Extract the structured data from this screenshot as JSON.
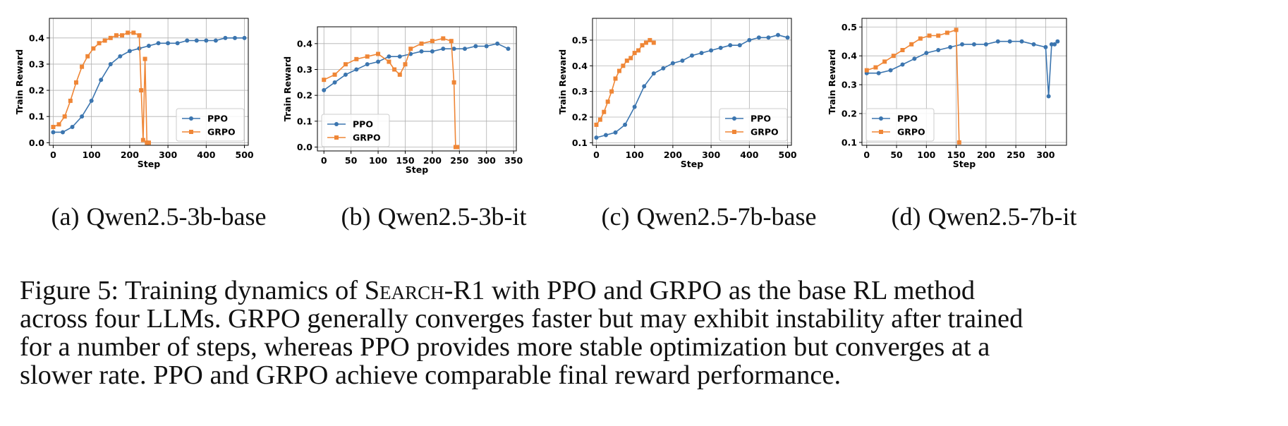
{
  "colors": {
    "ppo": "#3b75af",
    "grpo": "#ef8636",
    "grid": "#b0b0b0"
  },
  "figure": {
    "subplots": [
      {
        "tag": "(a)",
        "title": "Qwen2.5-3b-base"
      },
      {
        "tag": "(b)",
        "title": "Qwen2.5-3b-it"
      },
      {
        "tag": "(c)",
        "title": "Qwen2.5-7b-base"
      },
      {
        "tag": "(d)",
        "title": "Qwen2.5-7b-it"
      }
    ],
    "caption": {
      "lines": [
        [
          "Figure 5: Training dynamics of ",
          "Search",
          "-R1 with PPO and GRPO as the base RL method"
        ],
        [
          "across four LLMs. GRPO generally converges faster but may exhibit instability after trained"
        ],
        [
          "for a number of steps, whereas PPO provides more stable optimization but converges at a"
        ],
        [
          "slower rate. PPO and GRPO achieve comparable final reward performance."
        ]
      ]
    }
  },
  "chart_data": [
    {
      "type": "line",
      "xlabel": "Step",
      "ylabel": "Train Reward",
      "xlim": [
        -10,
        510
      ],
      "ylim": [
        -0.01,
        0.475
      ],
      "xticks": [
        0,
        100,
        200,
        300,
        400,
        500
      ],
      "yticks": [
        0.0,
        0.1,
        0.2,
        0.3,
        0.4
      ],
      "xticklabels": [
        "0",
        "100",
        "200",
        "300",
        "400",
        "500"
      ],
      "yticklabels": [
        "0.0",
        "0.1",
        "0.2",
        "0.3",
        "0.4"
      ],
      "grid": true,
      "legend": "lower-right",
      "series": [
        {
          "name": "PPO",
          "marker": "circle",
          "x": [
            0,
            25,
            50,
            75,
            100,
            125,
            150,
            175,
            200,
            225,
            250,
            275,
            300,
            325,
            350,
            375,
            400,
            425,
            450,
            475,
            500
          ],
          "y": [
            0.04,
            0.04,
            0.06,
            0.1,
            0.16,
            0.24,
            0.3,
            0.33,
            0.35,
            0.36,
            0.37,
            0.38,
            0.38,
            0.38,
            0.39,
            0.39,
            0.39,
            0.39,
            0.4,
            0.4,
            0.4
          ]
        },
        {
          "name": "GRPO",
          "marker": "square",
          "x": [
            0,
            15,
            30,
            45,
            60,
            75,
            90,
            105,
            120,
            135,
            150,
            165,
            180,
            195,
            210,
            225,
            230,
            235,
            240,
            245,
            250
          ],
          "y": [
            0.06,
            0.07,
            0.1,
            0.16,
            0.23,
            0.29,
            0.33,
            0.36,
            0.38,
            0.39,
            0.4,
            0.41,
            0.41,
            0.42,
            0.42,
            0.41,
            0.2,
            0.01,
            0.32,
            0.0,
            0.0
          ]
        }
      ]
    },
    {
      "type": "line",
      "xlabel": "Step",
      "ylabel": "Train Reward",
      "xlim": [
        -12,
        355
      ],
      "ylim": [
        -0.015,
        0.465
      ],
      "xticks": [
        0,
        50,
        100,
        150,
        200,
        250,
        300,
        350
      ],
      "yticks": [
        0.0,
        0.1,
        0.2,
        0.3,
        0.4
      ],
      "xticklabels": [
        "0",
        "50",
        "100",
        "150",
        "200",
        "250",
        "300",
        "350"
      ],
      "yticklabels": [
        "0.0",
        "0.1",
        "0.2",
        "0.3",
        "0.4"
      ],
      "grid": true,
      "legend": "lower-left",
      "series": [
        {
          "name": "PPO",
          "marker": "circle",
          "x": [
            0,
            20,
            40,
            60,
            80,
            100,
            120,
            140,
            160,
            180,
            200,
            220,
            240,
            260,
            280,
            300,
            320,
            340
          ],
          "y": [
            0.22,
            0.25,
            0.28,
            0.3,
            0.32,
            0.33,
            0.35,
            0.35,
            0.36,
            0.37,
            0.37,
            0.38,
            0.38,
            0.38,
            0.39,
            0.39,
            0.4,
            0.38
          ]
        },
        {
          "name": "GRPO",
          "marker": "square",
          "x": [
            0,
            20,
            40,
            60,
            80,
            100,
            120,
            130,
            140,
            150,
            160,
            180,
            200,
            220,
            235,
            240,
            243,
            246
          ],
          "y": [
            0.26,
            0.28,
            0.32,
            0.34,
            0.35,
            0.36,
            0.33,
            0.3,
            0.28,
            0.32,
            0.38,
            0.4,
            0.41,
            0.42,
            0.41,
            0.25,
            0.0,
            0.0
          ]
        }
      ]
    },
    {
      "type": "line",
      "xlabel": "Step",
      "ylabel": "Train Reward",
      "xlim": [
        -10,
        510
      ],
      "ylim": [
        0.09,
        0.585
      ],
      "xticks": [
        0,
        100,
        200,
        300,
        400,
        500
      ],
      "yticks": [
        0.1,
        0.2,
        0.3,
        0.4,
        0.5
      ],
      "xticklabels": [
        "0",
        "100",
        "200",
        "300",
        "400",
        "500"
      ],
      "yticklabels": [
        "0.1",
        "0.2",
        "0.3",
        "0.4",
        "0.5"
      ],
      "grid": true,
      "legend": "lower-right",
      "series": [
        {
          "name": "PPO",
          "marker": "circle",
          "x": [
            0,
            25,
            50,
            75,
            100,
            125,
            150,
            175,
            200,
            225,
            250,
            275,
            300,
            325,
            350,
            375,
            400,
            425,
            450,
            475,
            500
          ],
          "y": [
            0.12,
            0.13,
            0.14,
            0.17,
            0.24,
            0.32,
            0.37,
            0.39,
            0.41,
            0.42,
            0.44,
            0.45,
            0.46,
            0.47,
            0.48,
            0.48,
            0.5,
            0.51,
            0.51,
            0.52,
            0.51
          ]
        },
        {
          "name": "GRPO",
          "marker": "square",
          "x": [
            0,
            10,
            20,
            30,
            40,
            50,
            60,
            70,
            80,
            90,
            100,
            110,
            120,
            130,
            140,
            150
          ],
          "y": [
            0.17,
            0.19,
            0.22,
            0.26,
            0.3,
            0.35,
            0.38,
            0.4,
            0.42,
            0.43,
            0.45,
            0.46,
            0.48,
            0.49,
            0.5,
            0.49
          ]
        }
      ]
    },
    {
      "type": "line",
      "xlabel": "Step",
      "ylabel": "Train Reward",
      "xlim": [
        -8,
        335
      ],
      "ylim": [
        0.09,
        0.53
      ],
      "xticks": [
        0,
        50,
        100,
        150,
        200,
        250,
        300
      ],
      "yticks": [
        0.1,
        0.2,
        0.3,
        0.4,
        0.5
      ],
      "xticklabels": [
        "0",
        "50",
        "100",
        "150",
        "200",
        "250",
        "300"
      ],
      "yticklabels": [
        "0.1",
        "0.2",
        "0.3",
        "0.4",
        "0.5"
      ],
      "grid": true,
      "legend": "lower-left",
      "series": [
        {
          "name": "PPO",
          "marker": "circle",
          "x": [
            0,
            20,
            40,
            60,
            80,
            100,
            120,
            140,
            160,
            180,
            200,
            220,
            240,
            260,
            280,
            300,
            305,
            310,
            315,
            320
          ],
          "y": [
            0.34,
            0.34,
            0.35,
            0.37,
            0.39,
            0.41,
            0.42,
            0.43,
            0.44,
            0.44,
            0.44,
            0.45,
            0.45,
            0.45,
            0.44,
            0.43,
            0.26,
            0.44,
            0.44,
            0.45
          ]
        },
        {
          "name": "GRPO",
          "marker": "square",
          "x": [
            0,
            15,
            30,
            45,
            60,
            75,
            90,
            105,
            120,
            135,
            150,
            155
          ],
          "y": [
            0.35,
            0.36,
            0.38,
            0.4,
            0.42,
            0.44,
            0.46,
            0.47,
            0.47,
            0.48,
            0.49,
            0.1
          ]
        }
      ]
    }
  ]
}
